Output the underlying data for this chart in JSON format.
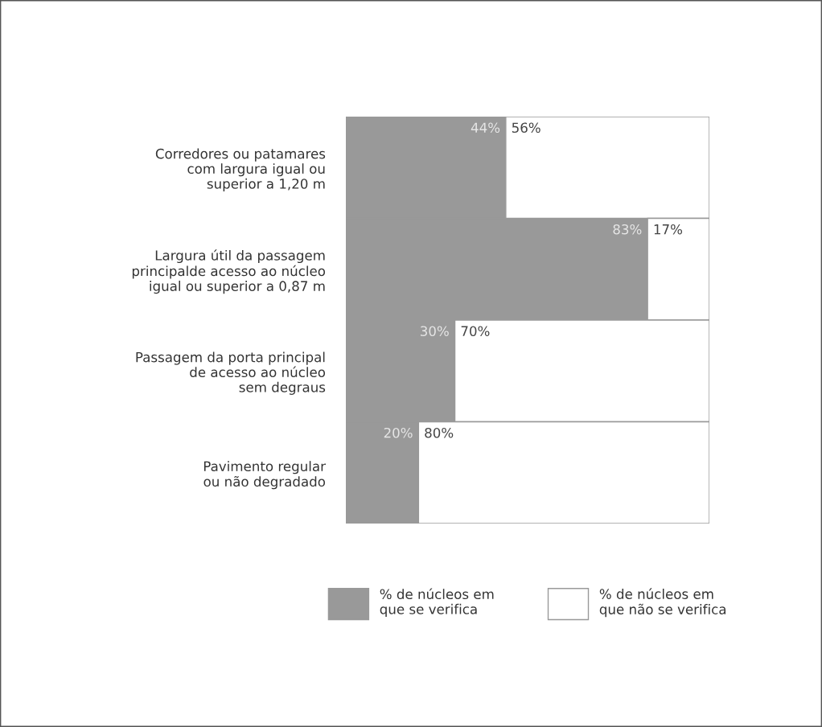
{
  "chart_data": {
    "type": "bar",
    "orientation": "horizontal",
    "stacked": true,
    "categories": [
      "Corredores ou patamares\ncom largura igual ou\nsuperior a 1,20 m",
      "Largura útil da passagem\nprincipalde acesso ao núcleo\nigual ou superior a 0,87 m",
      "Passagem da porta principal\nde acesso ao núcleo\nsem degraus",
      "Pavimento regular\nou não degradado"
    ],
    "series": [
      {
        "name": "% de núcleos em\nque se verifica",
        "color": "#999999",
        "values": [
          44,
          83,
          30,
          20
        ],
        "value_labels": [
          "44%",
          "83%",
          "30%",
          "20%"
        ]
      },
      {
        "name": "% de núcleos em\nque não se verifica",
        "color": "#ffffff",
        "values": [
          56,
          17,
          70,
          80
        ],
        "value_labels": [
          "56%",
          "17%",
          "70%",
          "80%"
        ]
      }
    ],
    "xlim": [
      0,
      100
    ],
    "tick_labels": "y",
    "legend": "bottom"
  }
}
